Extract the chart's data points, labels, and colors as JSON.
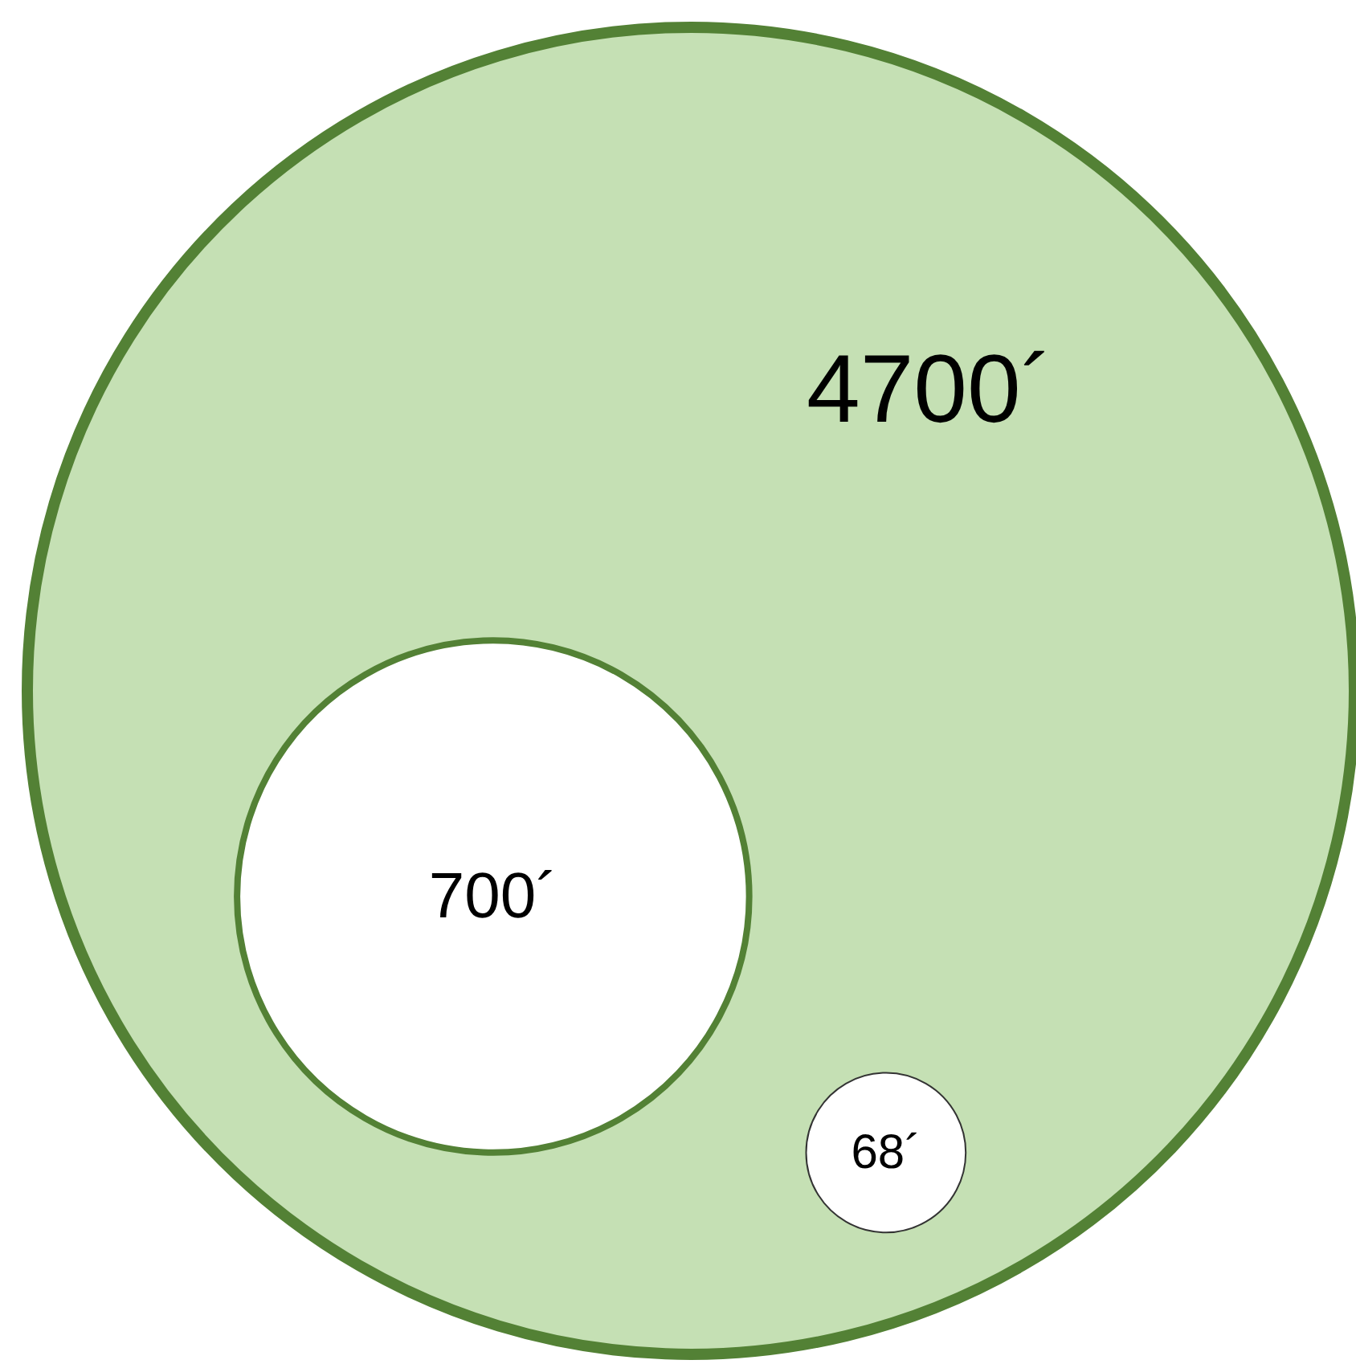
{
  "chart_data": {
    "type": "other",
    "values": [
      4700,
      700,
      68
    ],
    "value_labels": [
      "4700´",
      "700´",
      "68´"
    ],
    "colors": [
      "#c5e0b4",
      "#ffffff",
      "#ffffff"
    ]
  }
}
